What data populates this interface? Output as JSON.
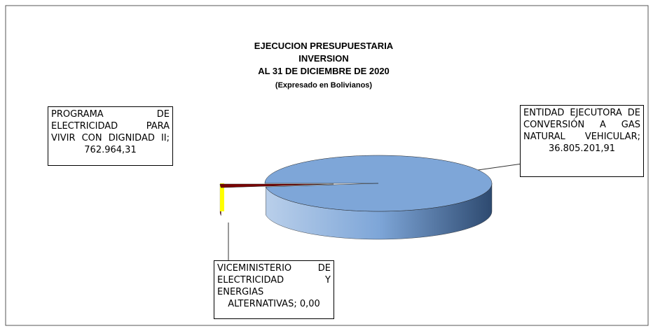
{
  "chart_data": {
    "type": "pie3d",
    "title": [
      "EJECUCION PRESUPUESTARIA",
      "INVERSION",
      "AL 31 DE DICIEMBRE DE 2020"
    ],
    "subtitle": "(Expresado en Bolivianos)",
    "label_separator": "; ",
    "categories": [
      "ENTIDAD EJECUTORA DE CONVERSIÓN A GAS NATURAL VEHICULAR",
      "PROGRAMA DE ELECTRICIDAD PARA VIVIR CON DIGNIDAD II",
      "VICEMINISTERIO DE ELECTRICIDAD Y ENERGIAS ALTERNATIVAS"
    ],
    "values": [
      36805201.91,
      762964.31,
      0
    ],
    "value_labels": [
      "36.805.201,91",
      "762.964,31",
      "0,00"
    ],
    "colors": [
      "#7ea6d8",
      "#7a0000",
      "#ffff00"
    ]
  }
}
